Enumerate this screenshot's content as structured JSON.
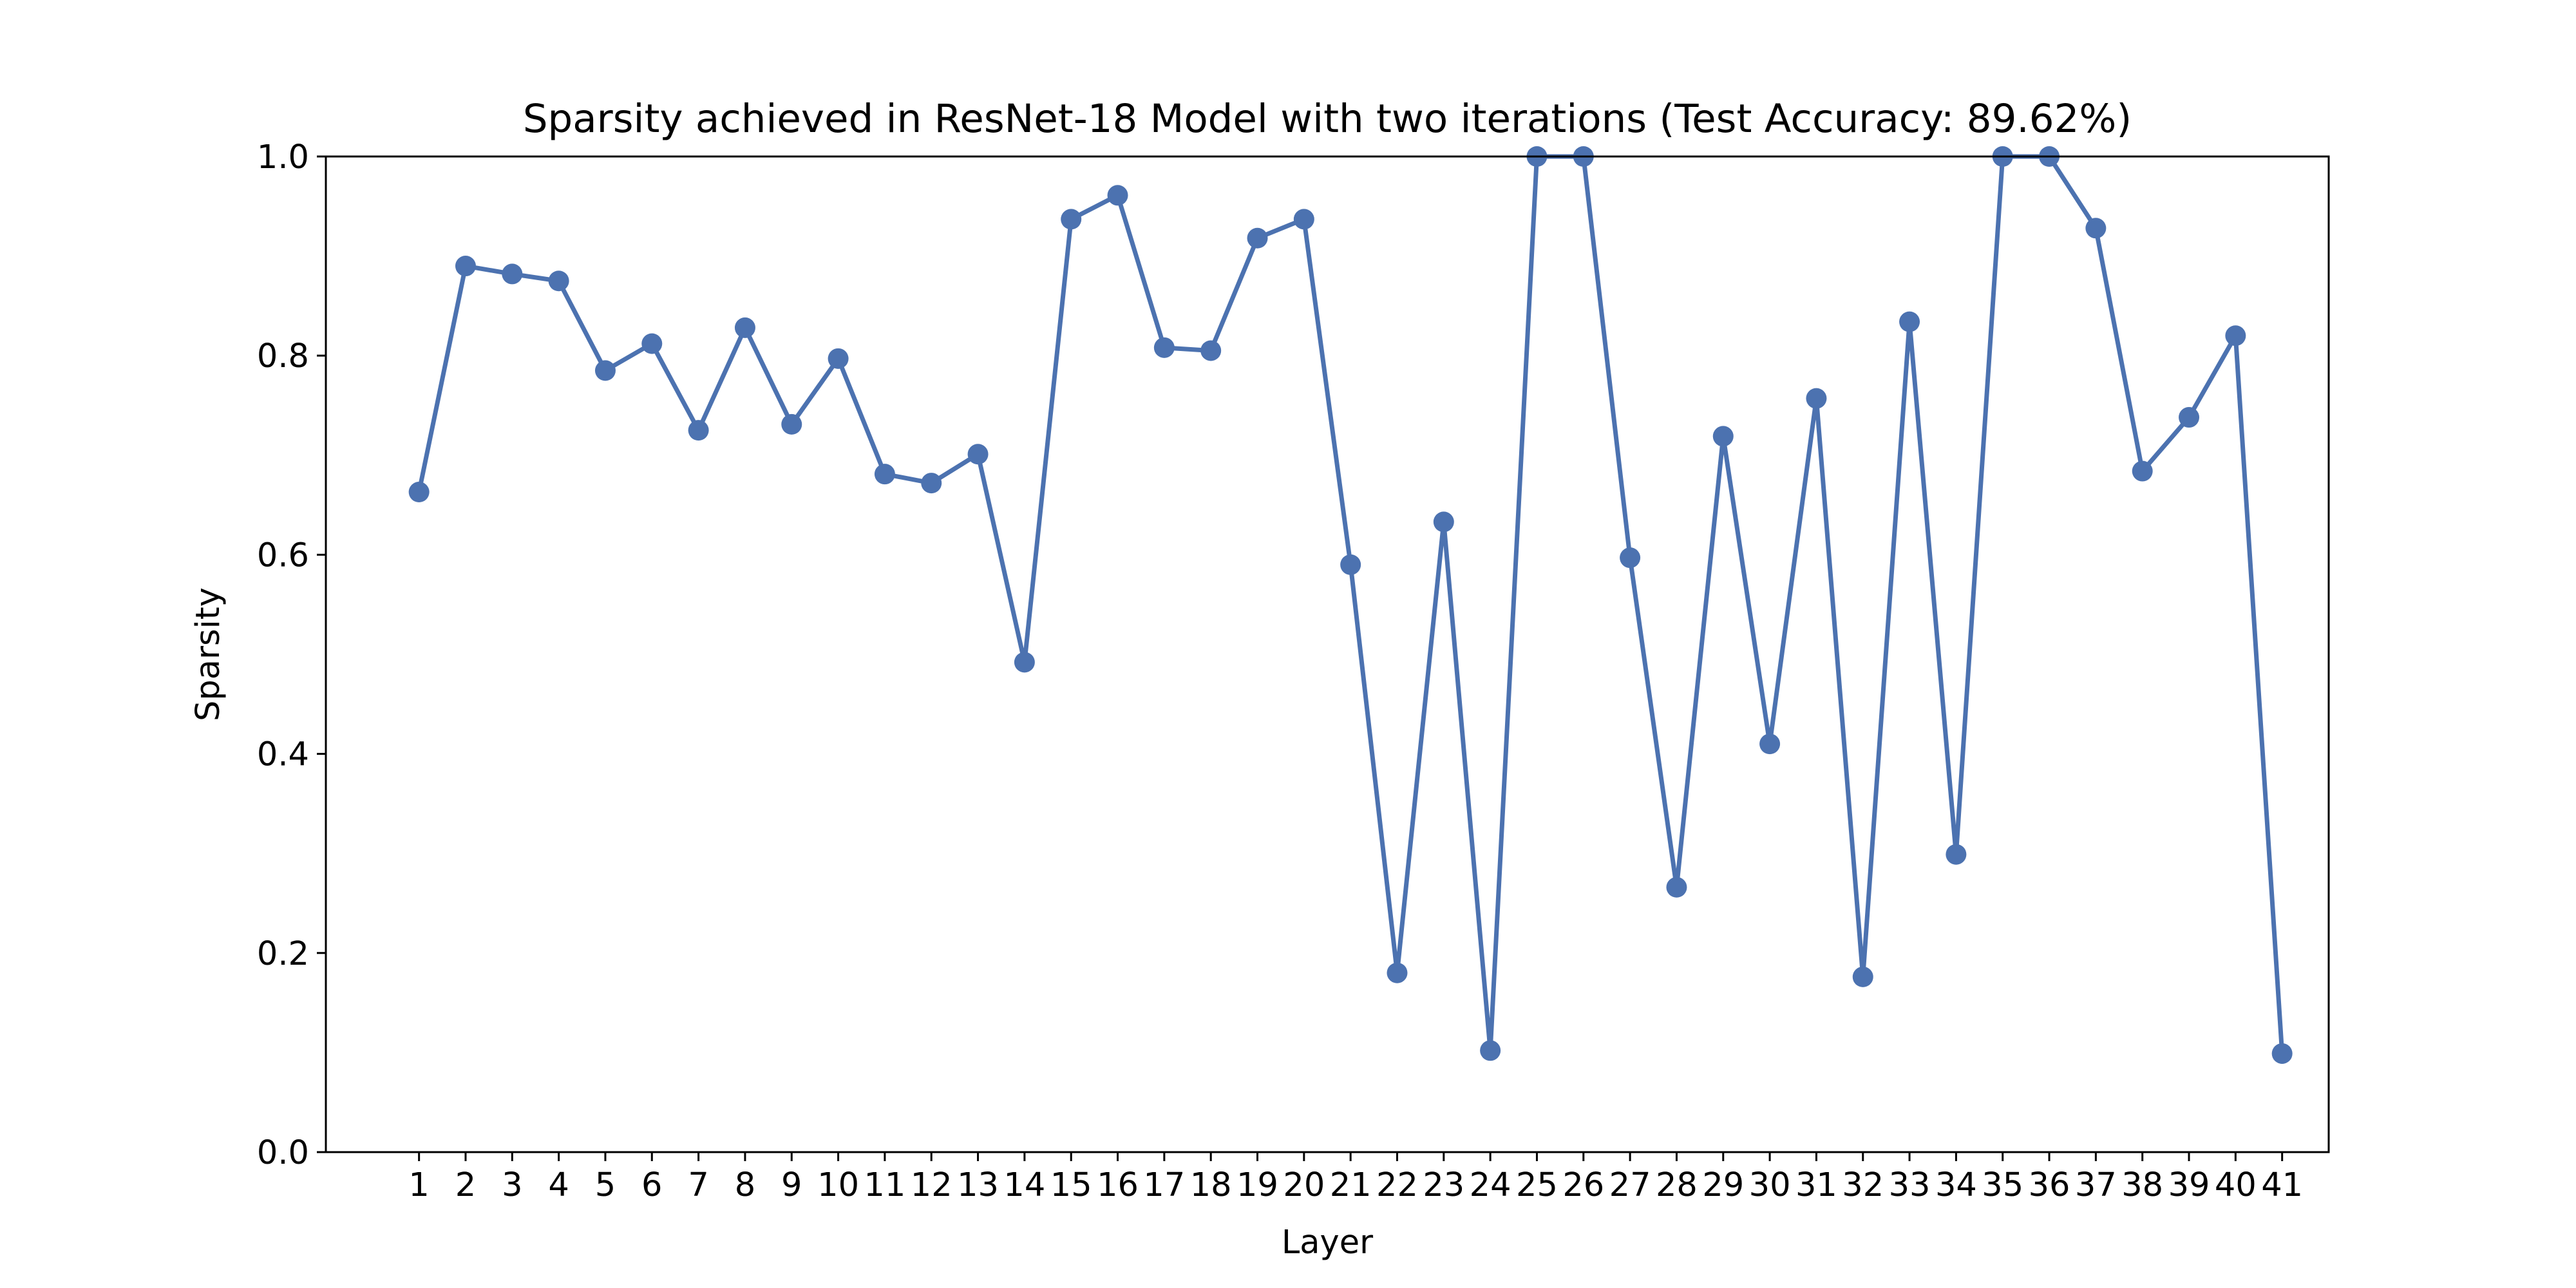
{
  "chart_data": {
    "type": "line",
    "title": "Sparsity achieved in ResNet-18 Model with two iterations (Test Accuracy: 89.62%)",
    "xlabel": "Layer",
    "ylabel": "Sparsity",
    "ylim": [
      0.0,
      1.0
    ],
    "xlim": [
      -1,
      42
    ],
    "yticks": [
      "0.0",
      "0.2",
      "0.4",
      "0.6",
      "0.8",
      "1.0"
    ],
    "grid": false,
    "x": [
      1,
      2,
      3,
      4,
      5,
      6,
      7,
      8,
      9,
      10,
      11,
      12,
      13,
      14,
      15,
      16,
      17,
      18,
      19,
      20,
      21,
      22,
      23,
      24,
      25,
      26,
      27,
      28,
      29,
      30,
      31,
      32,
      33,
      34,
      35,
      36,
      37,
      38,
      39,
      40,
      41
    ],
    "series": [
      {
        "color": "#4c72b0",
        "marker": "circle",
        "values": [
          0.663,
          0.89,
          0.882,
          0.875,
          0.785,
          0.812,
          0.725,
          0.828,
          0.731,
          0.797,
          0.681,
          0.672,
          0.701,
          0.492,
          0.937,
          0.961,
          0.808,
          0.805,
          0.918,
          0.937,
          0.59,
          0.18,
          0.633,
          0.102,
          1.0,
          1.0,
          0.597,
          0.266,
          0.719,
          0.41,
          0.757,
          0.176,
          0.834,
          0.299,
          1.0,
          1.0,
          0.928,
          0.684,
          0.738,
          0.82,
          0.099
        ]
      }
    ]
  }
}
